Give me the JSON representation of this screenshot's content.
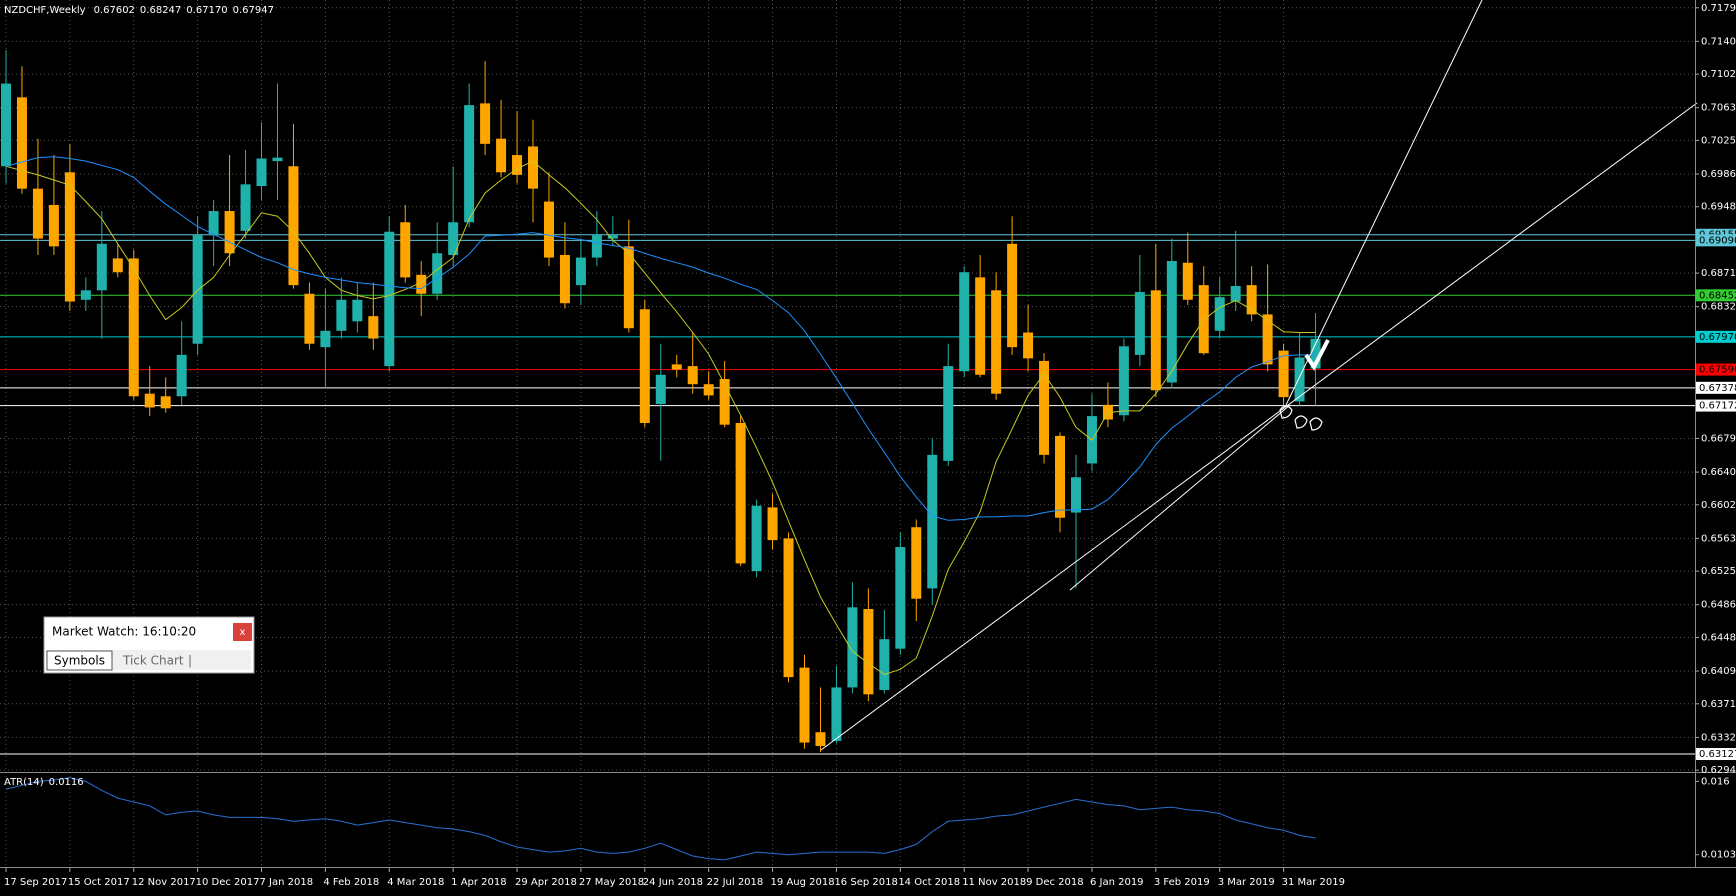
{
  "chart_data": [
    {
      "type": "candlestick",
      "title": "NZDCHF,Weekly",
      "header_values": [
        "0.67602",
        "0.68247",
        "0.67170",
        "0.67947"
      ],
      "up_color": "#20b2aa",
      "down_color": "#ffa500",
      "grid": true,
      "categories": [
        "17 Sep 2017",
        null,
        null,
        null,
        "15 Oct 2017",
        null,
        null,
        null,
        "12 Nov 2017",
        null,
        null,
        null,
        "10 Dec 2017",
        null,
        null,
        null,
        "7 Jan 2018",
        null,
        null,
        null,
        "4 Feb 2018",
        null,
        null,
        null,
        "4 Mar 2018",
        null,
        null,
        null,
        "1 Apr 2018",
        null,
        null,
        null,
        "29 Apr 2018",
        null,
        null,
        null,
        "27 May 2018",
        null,
        null,
        null,
        "24 Jun 2018",
        null,
        null,
        null,
        "22 Jul 2018",
        null,
        null,
        null,
        "19 Aug 2018",
        null,
        null,
        null,
        "16 Sep 2018",
        null,
        null,
        null,
        "14 Oct 2018",
        null,
        null,
        null,
        "11 Nov 2018",
        null,
        null,
        null,
        "9 Dec 2018",
        null,
        null,
        null,
        "6 Jan 2019",
        null,
        null,
        null,
        "3 Feb 2019",
        null,
        null,
        null,
        "3 Mar 2019",
        null,
        null,
        null,
        "31 Mar 2019",
        null,
        null
      ],
      "ohlc": [
        [
          0.6995,
          0.713,
          0.6975,
          0.7091
        ],
        [
          0.7075,
          0.7111,
          0.6963,
          0.6969
        ],
        [
          0.6969,
          0.7027,
          0.6892,
          0.6911
        ],
        [
          0.695,
          0.7008,
          0.6892,
          0.6902
        ],
        [
          0.6988,
          0.7021,
          0.6827,
          0.6838
        ],
        [
          0.684,
          0.6866,
          0.6827,
          0.6851
        ],
        [
          0.6851,
          0.6943,
          0.6795,
          0.6905
        ],
        [
          0.6888,
          0.6905,
          0.6866,
          0.6872
        ],
        [
          0.6888,
          0.6898,
          0.6724,
          0.6728
        ],
        [
          0.6731,
          0.6763,
          0.6705,
          0.6715
        ],
        [
          0.6728,
          0.675,
          0.6709,
          0.6714
        ],
        [
          0.6728,
          0.6815,
          0.6718,
          0.6776
        ],
        [
          0.6789,
          0.6937,
          0.6776,
          0.6915
        ],
        [
          0.6915,
          0.6956,
          0.6879,
          0.6943
        ],
        [
          0.6943,
          0.7008,
          0.6879,
          0.6894
        ],
        [
          0.692,
          0.7014,
          0.6911,
          0.6974
        ],
        [
          0.6972,
          0.7046,
          0.6956,
          0.7004
        ],
        [
          0.7001,
          0.7091,
          0.6956,
          0.7005
        ],
        [
          0.6995,
          0.7044,
          0.6853,
          0.6857
        ],
        [
          0.6847,
          0.686,
          0.6782,
          0.6789
        ],
        [
          0.6785,
          0.6853,
          0.6737,
          0.6804
        ],
        [
          0.6804,
          0.6866,
          0.6795,
          0.684
        ],
        [
          0.6815,
          0.686,
          0.6802,
          0.684
        ],
        [
          0.6821,
          0.686,
          0.6782,
          0.6795
        ],
        [
          0.6763,
          0.6937,
          0.6757,
          0.6919
        ],
        [
          0.693,
          0.695,
          0.686,
          0.6866
        ],
        [
          0.6869,
          0.6885,
          0.6821,
          0.6847
        ],
        [
          0.6847,
          0.693,
          0.684,
          0.6894
        ],
        [
          0.6892,
          0.6995,
          0.6879,
          0.693
        ],
        [
          0.693,
          0.7091,
          0.6924,
          0.7066
        ],
        [
          0.7068,
          0.7117,
          0.7008,
          0.7021
        ],
        [
          0.7027,
          0.7072,
          0.6982,
          0.6988
        ],
        [
          0.7008,
          0.7059,
          0.6975,
          0.6985
        ],
        [
          0.7018,
          0.7049,
          0.693,
          0.6969
        ],
        [
          0.6954,
          0.6988,
          0.6879,
          0.6889
        ],
        [
          0.6892,
          0.693,
          0.683,
          0.6836
        ],
        [
          0.6857,
          0.6911,
          0.6834,
          0.6889
        ],
        [
          0.6889,
          0.6943,
          0.6879,
          0.6915
        ],
        [
          0.6911,
          0.6937,
          0.6902,
          0.6915
        ],
        [
          0.6902,
          0.6933,
          0.6802,
          0.6807
        ],
        [
          0.6829,
          0.684,
          0.6692,
          0.6697
        ],
        [
          0.6719,
          0.6789,
          0.6653,
          0.6753
        ],
        [
          0.6765,
          0.6776,
          0.675,
          0.6759
        ],
        [
          0.6763,
          0.6802,
          0.6731,
          0.6742
        ],
        [
          0.6742,
          0.6757,
          0.6724,
          0.6729
        ],
        [
          0.6748,
          0.6769,
          0.6692,
          0.6695
        ],
        [
          0.6697,
          0.6705,
          0.6531,
          0.6534
        ],
        [
          0.6525,
          0.6608,
          0.6518,
          0.6601
        ],
        [
          0.6599,
          0.6615,
          0.655,
          0.6561
        ],
        [
          0.6563,
          0.657,
          0.6396,
          0.6402
        ],
        [
          0.6413,
          0.6428,
          0.6319,
          0.6326
        ],
        [
          0.6338,
          0.639,
          0.6315,
          0.6322
        ],
        [
          0.6328,
          0.6415,
          0.6325,
          0.639
        ],
        [
          0.639,
          0.6512,
          0.6383,
          0.6483
        ],
        [
          0.6481,
          0.6505,
          0.6374,
          0.6382
        ],
        [
          0.6387,
          0.648,
          0.6383,
          0.6446
        ],
        [
          0.6435,
          0.657,
          0.6428,
          0.6553
        ],
        [
          0.6576,
          0.6585,
          0.6467,
          0.6493
        ],
        [
          0.6505,
          0.6679,
          0.6486,
          0.666
        ],
        [
          0.6653,
          0.6789,
          0.6647,
          0.6763
        ],
        [
          0.6757,
          0.6879,
          0.675,
          0.6872
        ],
        [
          0.6866,
          0.6892,
          0.675,
          0.6753
        ],
        [
          0.6851,
          0.6872,
          0.6724,
          0.6731
        ],
        [
          0.6905,
          0.6937,
          0.6776,
          0.6785
        ],
        [
          0.6802,
          0.6834,
          0.6757,
          0.6772
        ],
        [
          0.6769,
          0.6778,
          0.665,
          0.666
        ],
        [
          0.6682,
          0.6686,
          0.657,
          0.6587
        ],
        [
          0.6593,
          0.666,
          0.6505,
          0.6634
        ],
        [
          0.665,
          0.6731,
          0.6641,
          0.6705
        ],
        [
          0.6718,
          0.6744,
          0.6692,
          0.6701
        ],
        [
          0.6706,
          0.6795,
          0.6699,
          0.6786
        ],
        [
          0.6776,
          0.6892,
          0.6763,
          0.6849
        ],
        [
          0.6851,
          0.6905,
          0.6727,
          0.6735
        ],
        [
          0.6744,
          0.6911,
          0.6737,
          0.6885
        ],
        [
          0.6883,
          0.6918,
          0.6834,
          0.684
        ],
        [
          0.6857,
          0.6879,
          0.6776,
          0.6778
        ],
        [
          0.6804,
          0.6866,
          0.6795,
          0.6843
        ],
        [
          0.6838,
          0.692,
          0.6827,
          0.6856
        ],
        [
          0.6857,
          0.6879,
          0.6815,
          0.6823
        ],
        [
          0.6823,
          0.6881,
          0.6757,
          0.6765
        ],
        [
          0.6781,
          0.6789,
          0.6718,
          0.6727
        ],
        [
          0.6722,
          0.6802,
          0.6717,
          0.6773
        ],
        [
          0.67602,
          0.68247,
          0.6717,
          0.67947
        ]
      ],
      "lines": [
        {
          "color": "#c8c820",
          "values": [
            0.6995,
            0.699,
            0.6985,
            0.6979,
            0.6973,
            0.6954,
            0.6934,
            0.6905,
            0.6876,
            0.6845,
            0.6817,
            0.6831,
            0.6851,
            0.6866,
            0.6892,
            0.6916,
            0.6941,
            0.6937,
            0.6919,
            0.6894,
            0.6866,
            0.6851,
            0.6845,
            0.6841,
            0.6845,
            0.6852,
            0.686,
            0.6875,
            0.6889,
            0.6934,
            0.6964,
            0.6979,
            0.6992,
            0.7001,
            0.6985,
            0.697,
            0.6952,
            0.6933,
            0.6909,
            0.6894,
            0.6871,
            0.6848,
            0.6826,
            0.6802,
            0.6777,
            0.6742,
            0.6706,
            0.6668,
            0.6628,
            0.6583,
            0.6538,
            0.6495,
            0.6463,
            0.6432,
            0.6418,
            0.6405,
            0.6411,
            0.6424,
            0.6473,
            0.6527,
            0.6559,
            0.6594,
            0.6652,
            0.669,
            0.6729,
            0.6754,
            0.6727,
            0.6692,
            0.6677,
            0.6709,
            0.6711,
            0.6711,
            0.6731,
            0.6757,
            0.6789,
            0.6817,
            0.6831,
            0.6839,
            0.6829,
            0.6816,
            0.6803,
            0.6802,
            0.6802
          ]
        },
        {
          "color": "#1e90ff",
          "values": [
            0.6995,
            0.7,
            0.7005,
            0.7006,
            0.7004,
            0.7001,
            0.6996,
            0.6991,
            0.6982,
            0.6966,
            0.6951,
            0.6938,
            0.6925,
            0.6916,
            0.6907,
            0.6898,
            0.6889,
            0.6883,
            0.6875,
            0.687,
            0.6866,
            0.6863,
            0.686,
            0.6858,
            0.6856,
            0.6854,
            0.6853,
            0.6865,
            0.6878,
            0.6893,
            0.6914,
            0.6915,
            0.6916,
            0.6918,
            0.6915,
            0.6912,
            0.691,
            0.6906,
            0.6903,
            0.69,
            0.6894,
            0.6888,
            0.6883,
            0.6878,
            0.6871,
            0.6865,
            0.6858,
            0.6852,
            0.6839,
            0.6825,
            0.6804,
            0.6777,
            0.6749,
            0.672,
            0.669,
            0.6663,
            0.6635,
            0.6611,
            0.6589,
            0.6584,
            0.6585,
            0.6588,
            0.6588,
            0.6589,
            0.6589,
            0.6593,
            0.6596,
            0.6596,
            0.6597,
            0.6608,
            0.6626,
            0.6646,
            0.6672,
            0.6691,
            0.6705,
            0.672,
            0.6733,
            0.675,
            0.6762,
            0.6768,
            0.6775,
            0.6776,
            0.6776
          ]
        }
      ],
      "ylim": [
        0.6293,
        0.7188
      ],
      "yticks": [
        {
          "value": 0.7179,
          "label": "0.71790"
        },
        {
          "value": 0.714,
          "label": "0.71400"
        },
        {
          "value": 0.7102,
          "label": "0.71020"
        },
        {
          "value": 0.7063,
          "label": "0.70630"
        },
        {
          "value": 0.7025,
          "label": "0.70250"
        },
        {
          "value": 0.6986,
          "label": "0.69860"
        },
        {
          "value": 0.6948,
          "label": "0.69480"
        },
        {
          "value": 0.6871,
          "label": "0.68710"
        },
        {
          "value": 0.6832,
          "label": "0.68320"
        },
        {
          "value": 0.6679,
          "label": "0.66790"
        },
        {
          "value": 0.664,
          "label": "0.66400"
        },
        {
          "value": 0.6602,
          "label": "0.66020"
        },
        {
          "value": 0.6563,
          "label": "0.65630"
        },
        {
          "value": 0.6525,
          "label": "0.65250"
        },
        {
          "value": 0.6486,
          "label": "0.64860"
        },
        {
          "value": 0.6448,
          "label": "0.64480"
        },
        {
          "value": 0.6409,
          "label": "0.64090"
        },
        {
          "value": 0.6371,
          "label": "0.63710"
        },
        {
          "value": 0.6332,
          "label": "0.63320"
        },
        {
          "value": 0.6294,
          "label": "0.62940"
        }
      ],
      "levels": [
        {
          "value": 0.69155,
          "label": "0.69155",
          "color": "#5fc8d8"
        },
        {
          "value": 0.6909,
          "label": "0.69090",
          "color": "#5fc8d8"
        },
        {
          "value": 0.68452,
          "label": "0.68452",
          "color": "#32cd32"
        },
        {
          "value": 0.6797,
          "label": "0.67970",
          "color": "#00ced1"
        },
        {
          "value": 0.6759,
          "label": "0.67590",
          "color": "#ff0000"
        },
        {
          "value": 0.67378,
          "label": "0.67378",
          "color": "#ffffff"
        },
        {
          "value": 0.67172,
          "label": "0.67172",
          "color": "#ffffff"
        },
        {
          "value": 0.63127,
          "label": "0.63127",
          "color": "#ffffff"
        }
      ]
    },
    {
      "type": "line",
      "title": "ATR(14)",
      "color": "#2a6fd1",
      "values": [
        0.0154,
        0.0157,
        0.016,
        0.0161,
        0.0163,
        0.016,
        0.0153,
        0.0147,
        0.0144,
        0.0141,
        0.0134,
        0.0136,
        0.0137,
        0.0134,
        0.0132,
        0.0132,
        0.0132,
        0.0131,
        0.0129,
        0.013,
        0.0131,
        0.0129,
        0.0126,
        0.0128,
        0.013,
        0.0128,
        0.0126,
        0.0124,
        0.0123,
        0.0121,
        0.0118,
        0.0113,
        0.0109,
        0.0107,
        0.0105,
        0.0106,
        0.0108,
        0.0105,
        0.0104,
        0.0105,
        0.0108,
        0.0112,
        0.0107,
        0.0102,
        0.01,
        0.0099,
        0.0102,
        0.0105,
        0.0104,
        0.0103,
        0.0104,
        0.0105,
        0.0105,
        0.0105,
        0.0105,
        0.0104,
        0.0107,
        0.0111,
        0.0121,
        0.0129,
        0.013,
        0.0131,
        0.0133,
        0.0134,
        0.0137,
        0.014,
        0.0143,
        0.0146,
        0.0144,
        0.0142,
        0.0141,
        0.0138,
        0.0139,
        0.014,
        0.0138,
        0.0137,
        0.0135,
        0.013,
        0.0127,
        0.0124,
        0.0122,
        0.0118,
        0.0116
      ],
      "ylim": [
        0.0095,
        0.0165
      ],
      "yticks": [
        0.016,
        0.0103
      ]
    }
  ],
  "market_watch": {
    "title": "Market Watch: 16:10:20",
    "close": "x",
    "tabs": [
      "Symbols",
      "Tick Chart"
    ],
    "separator": "|"
  }
}
